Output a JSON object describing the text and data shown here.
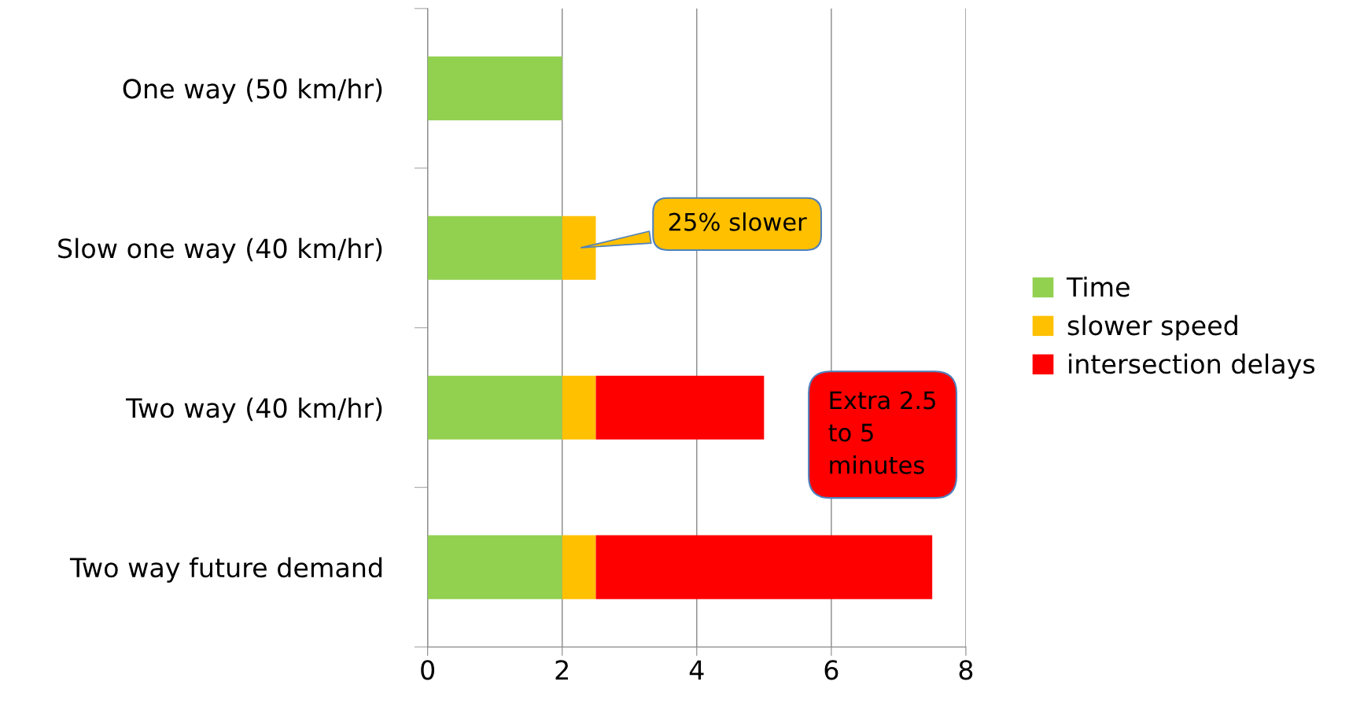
{
  "chart_data": {
    "type": "bar",
    "orientation": "horizontal",
    "stacked": true,
    "categories": [
      "One way (50 km/hr)",
      "Slow one way (40 km/hr)",
      "Two way (40 km/hr)",
      "Two way future demand"
    ],
    "series": [
      {
        "name": "Time",
        "color": "#92d050",
        "values": [
          2,
          2,
          2,
          2
        ]
      },
      {
        "name": "slower speed",
        "color": "#ffc000",
        "values": [
          0,
          0.5,
          0.5,
          0.5
        ]
      },
      {
        "name": "intersection delays",
        "color": "#ff0000",
        "values": [
          0,
          0,
          2.5,
          5
        ]
      }
    ],
    "xlim": [
      0,
      8
    ],
    "xticks": [
      0,
      2,
      4,
      6,
      8
    ],
    "grid": "x",
    "legend": "right",
    "annotations": [
      "25% slower",
      "Extra 2.5\nto 5\nminutes"
    ]
  }
}
